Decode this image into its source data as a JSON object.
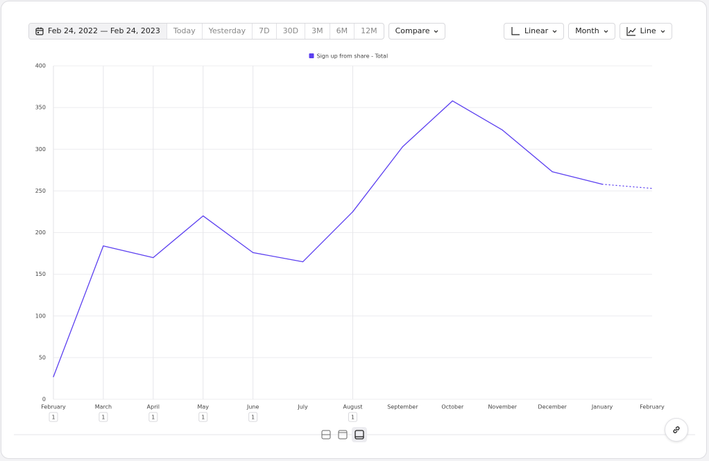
{
  "toolbar": {
    "date_range": "Feb 24, 2022 — Feb 24, 2023",
    "presets": [
      "Today",
      "Yesterday",
      "7D",
      "30D",
      "3M",
      "6M",
      "12M"
    ],
    "compare": "Compare",
    "scale": "Linear",
    "interval": "Month",
    "chart_type": "Line"
  },
  "chart_data": {
    "type": "line",
    "categories": [
      "February",
      "March",
      "April",
      "May",
      "June",
      "July",
      "August",
      "September",
      "October",
      "November",
      "December",
      "January",
      "February"
    ],
    "series": [
      {
        "name": "Sign up from share - Total",
        "color": "#5b3ff0",
        "values": [
          27,
          184,
          170,
          220,
          176,
          165,
          225,
          303,
          358,
          323,
          273,
          258,
          253
        ]
      }
    ],
    "annotation_counts": [
      1,
      1,
      1,
      1,
      1,
      null,
      1,
      null,
      null,
      null,
      null,
      null,
      null
    ],
    "ylim": [
      0,
      400
    ],
    "yticks": [
      0,
      50,
      100,
      150,
      200,
      250,
      300,
      350,
      400
    ],
    "grid": true,
    "dotted_last_segment": true,
    "legend": "top"
  }
}
